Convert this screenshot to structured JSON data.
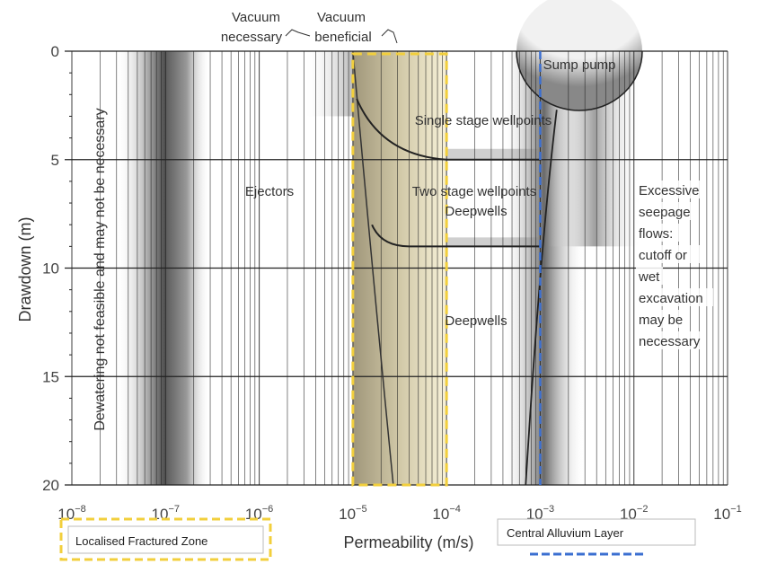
{
  "chart_data": {
    "type": "area",
    "xlabel": "Permeability (m/s)",
    "ylabel": "Drawdown (m)",
    "xscale": "log",
    "xlim": [
      1e-08,
      0.1
    ],
    "ylim": [
      0,
      20
    ],
    "y_inverted": true,
    "grid": true,
    "x_ticks": [
      {
        "value": 1e-08,
        "base": "10",
        "exp": "−8"
      },
      {
        "value": 1e-07,
        "base": "10",
        "exp": "−7"
      },
      {
        "value": 1e-06,
        "base": "10",
        "exp": "−6"
      },
      {
        "value": 1e-05,
        "base": "10",
        "exp": "−5"
      },
      {
        "value": 0.0001,
        "base": "10",
        "exp": "−4"
      },
      {
        "value": 0.001,
        "base": "10",
        "exp": "−3"
      },
      {
        "value": 0.01,
        "base": "10",
        "exp": "−2"
      },
      {
        "value": 0.1,
        "base": "10",
        "exp": "−1"
      }
    ],
    "y_ticks": [
      "0",
      "5",
      "10",
      "15",
      "20"
    ],
    "regions": {
      "not_feasible": "Dewatering not feasible and may not be necessary",
      "ejectors": "Ejectors",
      "single_stage": "Single stage wellpoints",
      "two_stage": "Two stage wellpoints",
      "deepwells_upper": "Deepwells",
      "deepwells_lower": "Deepwells",
      "sump_pump": "Sump pump",
      "excessive": [
        "Excessive",
        "seepage",
        "flows:",
        "cutoff or",
        "wet",
        "excavation",
        "may be",
        "necessary"
      ]
    },
    "annotations": {
      "vacuum_necessary": [
        "Vacuum",
        "necessary"
      ],
      "vacuum_beneficial": [
        "Vacuum",
        "beneficial"
      ]
    },
    "highlights": [
      {
        "name": "Localised Fractured Zone",
        "x_range": [
          1e-05,
          0.0001
        ],
        "color": "#f2cf3c",
        "style": "dashed box"
      },
      {
        "name": "Central Alluvium Layer",
        "x_value": 0.001,
        "color": "#3b6fd1",
        "style": "dashed line"
      }
    ]
  }
}
